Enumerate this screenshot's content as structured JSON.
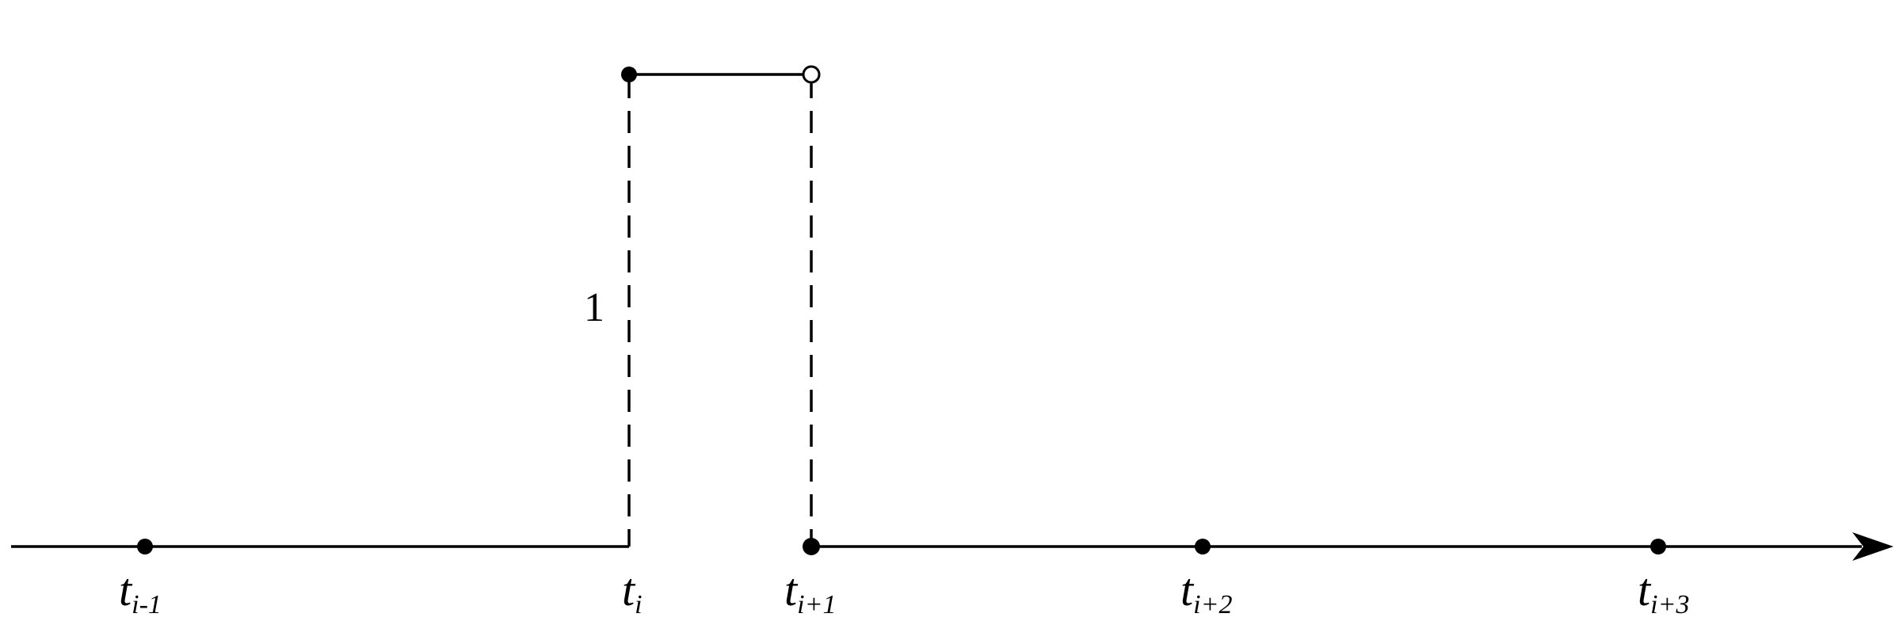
{
  "diagram": {
    "height_value": "1",
    "knots": [
      {
        "symbol": "t",
        "subscript": "i-1"
      },
      {
        "symbol": "t",
        "subscript": "i"
      },
      {
        "symbol": "t",
        "subscript": "i+1"
      },
      {
        "symbol": "t",
        "subscript": "i+2"
      },
      {
        "symbol": "t",
        "subscript": "i+3"
      }
    ]
  }
}
